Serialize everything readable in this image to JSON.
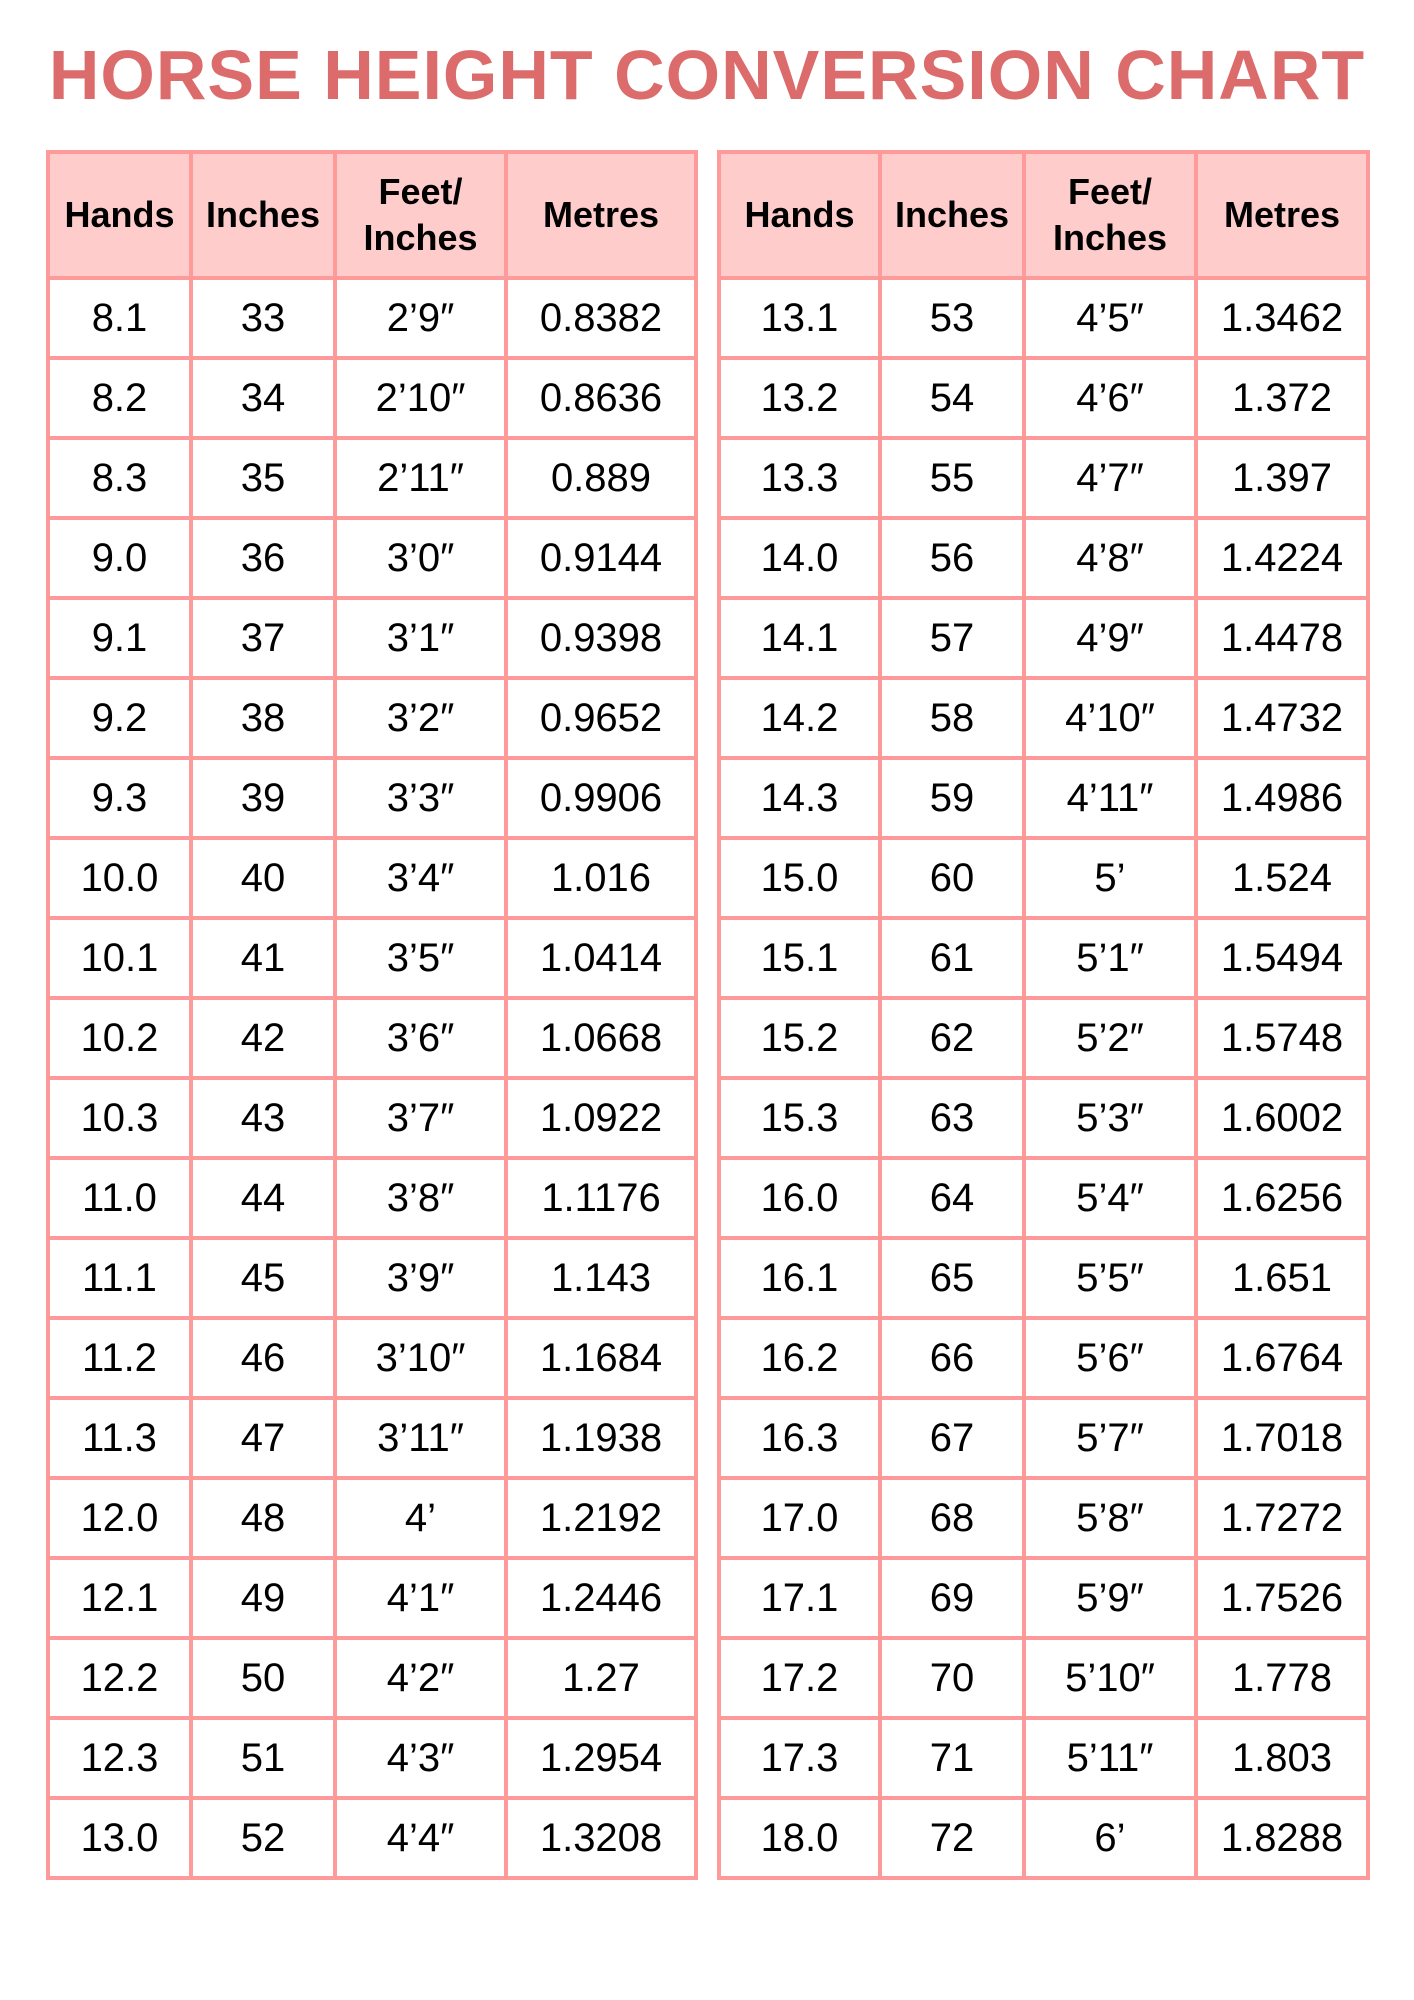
{
  "title": "HORSE HEIGHT CONVERSION CHART",
  "colors": {
    "title": "#dc6b6b",
    "border": "#ff9a9a",
    "header_bg": "#ffcccc"
  },
  "headers": [
    "Hands",
    "Inches",
    "Feet/\nInches",
    "Metres"
  ],
  "tables": [
    {
      "rows": [
        [
          "8.1",
          "33",
          "2’9″",
          "0.8382"
        ],
        [
          "8.2",
          "34",
          "2’10″",
          "0.8636"
        ],
        [
          "8.3",
          "35",
          "2’11″",
          "0.889"
        ],
        [
          "9.0",
          "36",
          "3’0″",
          "0.9144"
        ],
        [
          "9.1",
          "37",
          "3’1″",
          "0.9398"
        ],
        [
          "9.2",
          "38",
          "3’2″",
          "0.9652"
        ],
        [
          "9.3",
          "39",
          "3’3″",
          "0.9906"
        ],
        [
          "10.0",
          "40",
          "3’4″",
          "1.016"
        ],
        [
          "10.1",
          "41",
          "3’5″",
          "1.0414"
        ],
        [
          "10.2",
          "42",
          "3’6″",
          "1.0668"
        ],
        [
          "10.3",
          "43",
          "3’7″",
          "1.0922"
        ],
        [
          "11.0",
          "44",
          "3’8″",
          "1.1176"
        ],
        [
          "11.1",
          "45",
          "3’9″",
          "1.143"
        ],
        [
          "11.2",
          "46",
          "3’10″",
          "1.1684"
        ],
        [
          "11.3",
          "47",
          "3’11″",
          "1.1938"
        ],
        [
          "12.0",
          "48",
          "4’",
          "1.2192"
        ],
        [
          "12.1",
          "49",
          "4’1″",
          "1.2446"
        ],
        [
          "12.2",
          "50",
          "4’2″",
          "1.27"
        ],
        [
          "12.3",
          "51",
          "4’3″",
          "1.2954"
        ],
        [
          "13.0",
          "52",
          "4’4″",
          "1.3208"
        ]
      ]
    },
    {
      "rows": [
        [
          "13.1",
          "53",
          "4’5″",
          "1.3462"
        ],
        [
          "13.2",
          "54",
          "4’6″",
          "1.372"
        ],
        [
          "13.3",
          "55",
          "4’7″",
          "1.397"
        ],
        [
          "14.0",
          "56",
          "4’8″",
          "1.4224"
        ],
        [
          "14.1",
          "57",
          "4’9″",
          "1.4478"
        ],
        [
          "14.2",
          "58",
          "4’10″",
          "1.4732"
        ],
        [
          "14.3",
          "59",
          "4’11″",
          "1.4986"
        ],
        [
          "15.0",
          "60",
          "5’",
          "1.524"
        ],
        [
          "15.1",
          "61",
          "5’1″",
          "1.5494"
        ],
        [
          "15.2",
          "62",
          "5’2″",
          "1.5748"
        ],
        [
          "15.3",
          "63",
          "5’3″",
          "1.6002"
        ],
        [
          "16.0",
          "64",
          "5’4″",
          "1.6256"
        ],
        [
          "16.1",
          "65",
          "5’5″",
          "1.651"
        ],
        [
          "16.2",
          "66",
          "5’6″",
          "1.6764"
        ],
        [
          "16.3",
          "67",
          "5’7″",
          "1.7018"
        ],
        [
          "17.0",
          "68",
          "5’8″",
          "1.7272"
        ],
        [
          "17.1",
          "69",
          "5’9″",
          "1.7526"
        ],
        [
          "17.2",
          "70",
          "5’10″",
          "1.778"
        ],
        [
          "17.3",
          "71",
          "5’11″",
          "1.803"
        ],
        [
          "18.0",
          "72",
          "6’",
          "1.8288"
        ]
      ]
    }
  ]
}
